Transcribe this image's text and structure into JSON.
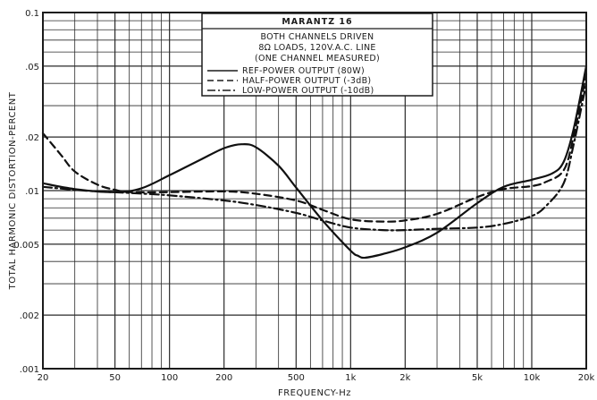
{
  "chart_data": {
    "type": "line",
    "title": "MARANTZ 16",
    "subtitle_lines": [
      "BOTH CHANNELS DRIVEN",
      "8Ω LOADS, 120V.A.C. LINE",
      "(ONE CHANNEL MEASURED)"
    ],
    "xlabel": "FREQUENCY-Hz",
    "ylabel": "TOTAL HARMONIC DISTORTION-PERCENT",
    "x_scale": "log",
    "y_scale": "log",
    "xlim": [
      20,
      20000
    ],
    "ylim": [
      0.001,
      0.1
    ],
    "grid": true,
    "legend_position": "top-right",
    "x_ticks": [
      {
        "value": 20,
        "label": "20"
      },
      {
        "value": 50,
        "label": "50"
      },
      {
        "value": 100,
        "label": "100"
      },
      {
        "value": 200,
        "label": "200"
      },
      {
        "value": 500,
        "label": "500"
      },
      {
        "value": 1000,
        "label": "1k"
      },
      {
        "value": 2000,
        "label": "2k"
      },
      {
        "value": 5000,
        "label": "5k"
      },
      {
        "value": 10000,
        "label": "10k"
      },
      {
        "value": 20000,
        "label": "20k"
      }
    ],
    "y_ticks": [
      {
        "value": 0.001,
        "label": ".001"
      },
      {
        "value": 0.002,
        "label": ".002"
      },
      {
        "value": 0.005,
        "label": "0.005"
      },
      {
        "value": 0.01,
        "label": ".01"
      },
      {
        "value": 0.02,
        "label": ".02"
      },
      {
        "value": 0.05,
        "label": ".05"
      },
      {
        "value": 0.1,
        "label": "0.1"
      }
    ],
    "series": [
      {
        "name": "REF-POWER OUTPUT (80W)",
        "style": "solid",
        "x": [
          20,
          30,
          50,
          70,
          100,
          150,
          200,
          250,
          300,
          400,
          500,
          700,
          1000,
          1100,
          1200,
          1500,
          2000,
          3000,
          5000,
          7000,
          10000,
          13000,
          15000,
          17000,
          20000
        ],
        "y": [
          0.011,
          0.0102,
          0.0098,
          0.0103,
          0.0122,
          0.015,
          0.0173,
          0.0182,
          0.0175,
          0.0138,
          0.0104,
          0.0068,
          0.0046,
          0.0043,
          0.0042,
          0.0044,
          0.0048,
          0.0058,
          0.0085,
          0.0105,
          0.0115,
          0.0125,
          0.0145,
          0.022,
          0.05
        ]
      },
      {
        "name": "HALF-POWER OUTPUT (-3dB)",
        "style": "dashed",
        "x": [
          20,
          25,
          30,
          40,
          50,
          60,
          100,
          200,
          300,
          500,
          700,
          1000,
          1500,
          2000,
          3000,
          5000,
          7000,
          10000,
          12000,
          15000,
          17000,
          20000
        ],
        "y": [
          0.021,
          0.016,
          0.0128,
          0.0108,
          0.0101,
          0.0098,
          0.0098,
          0.0099,
          0.0096,
          0.0088,
          0.0078,
          0.0069,
          0.0067,
          0.0068,
          0.0074,
          0.0092,
          0.0102,
          0.0106,
          0.0112,
          0.013,
          0.02,
          0.045
        ]
      },
      {
        "name": "LOW-POWER OUTPUT (-10dB)",
        "style": "dash-dot",
        "x": [
          20,
          30,
          40,
          60,
          100,
          200,
          300,
          500,
          700,
          1000,
          1500,
          2000,
          3000,
          5000,
          7000,
          10000,
          12000,
          15000,
          17000,
          20000
        ],
        "y": [
          0.0105,
          0.0101,
          0.0099,
          0.0097,
          0.0094,
          0.0088,
          0.0083,
          0.0075,
          0.0068,
          0.0062,
          0.006,
          0.006,
          0.0061,
          0.0062,
          0.0065,
          0.0072,
          0.0082,
          0.011,
          0.018,
          0.04
        ]
      }
    ]
  }
}
